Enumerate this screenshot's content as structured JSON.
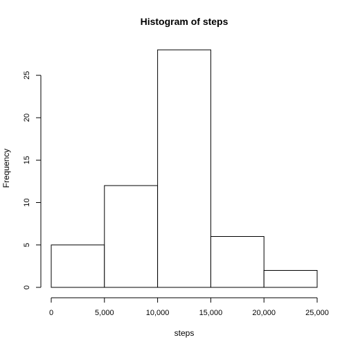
{
  "chart_data": {
    "type": "bar",
    "title": "Histogram of steps",
    "xlabel": "steps",
    "ylabel": "Frequency",
    "bins": [
      {
        "from": 0,
        "to": 5000,
        "count": 5
      },
      {
        "from": 5000,
        "to": 10000,
        "count": 12
      },
      {
        "from": 10000,
        "to": 15000,
        "count": 28
      },
      {
        "from": 15000,
        "to": 20000,
        "count": 6
      },
      {
        "from": 20000,
        "to": 25000,
        "count": 2
      }
    ],
    "xlim": [
      0,
      25000
    ],
    "ylim": [
      0,
      28
    ],
    "x_ticks": [
      0,
      5000,
      10000,
      15000,
      20000,
      25000
    ],
    "x_tick_labels": [
      "0",
      "5,000",
      "10,000",
      "15,000",
      "20,000",
      "25,000"
    ],
    "y_ticks": [
      0,
      5,
      10,
      15,
      20,
      25
    ],
    "y_tick_labels": [
      "0",
      "5",
      "10",
      "15",
      "20",
      "25"
    ],
    "grid": false,
    "bar_fill": "#ffffff",
    "bar_stroke": "#000000"
  }
}
